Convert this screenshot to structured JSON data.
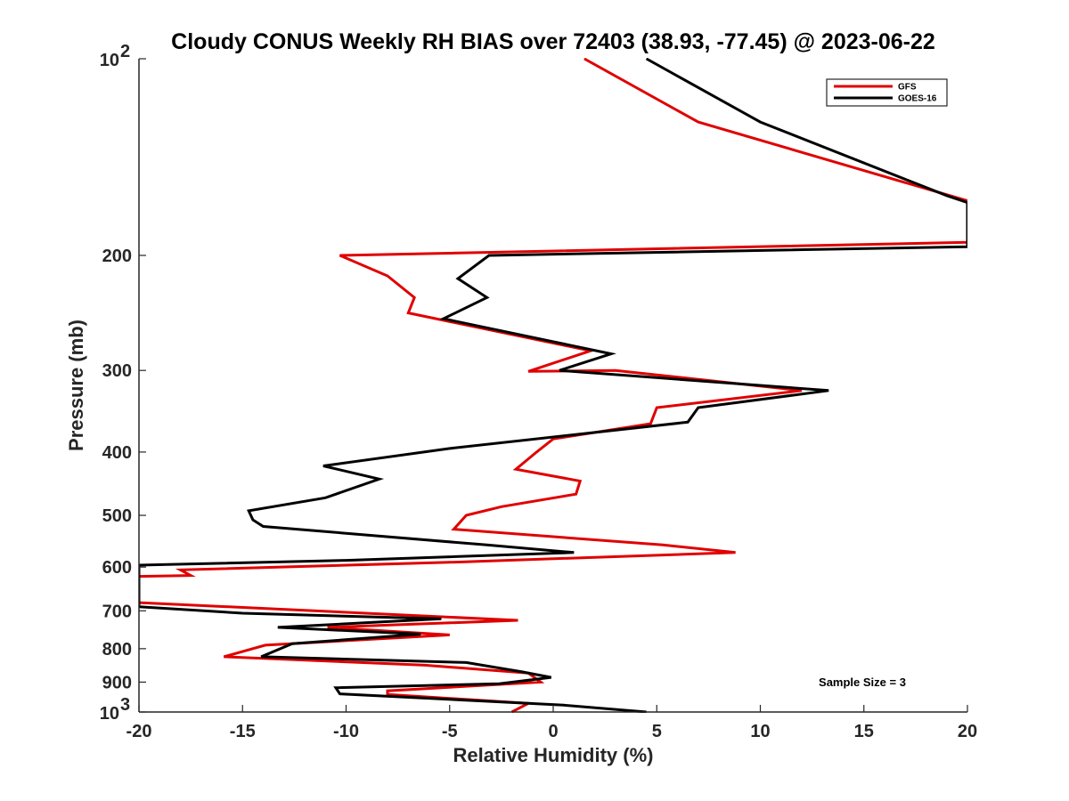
{
  "chart_data": {
    "type": "line",
    "title": "Cloudy CONUS Weekly RH BIAS over 72403 (38.93, -77.45) @ 2023-06-22",
    "xlabel": "Relative Humidity (%)",
    "ylabel": "Pressure (mb)",
    "xlim": [
      -20,
      20
    ],
    "ylim": [
      100,
      1000
    ],
    "y_scale": "log",
    "y_reversed": true,
    "grid": false,
    "legend_position": "top-right",
    "annotation": "Sample Size = 3",
    "x_ticks": [
      {
        "value": -20,
        "label": "-20"
      },
      {
        "value": -15,
        "label": "-15"
      },
      {
        "value": -10,
        "label": "-10"
      },
      {
        "value": -5,
        "label": "-5"
      },
      {
        "value": 0,
        "label": "0"
      },
      {
        "value": 5,
        "label": "5"
      },
      {
        "value": 10,
        "label": "10"
      },
      {
        "value": 15,
        "label": "15"
      },
      {
        "value": 20,
        "label": "20"
      }
    ],
    "y_ticks": [
      {
        "value": 200,
        "label": "200"
      },
      {
        "value": 300,
        "label": "300"
      },
      {
        "value": 400,
        "label": "400"
      },
      {
        "value": 500,
        "label": "500"
      },
      {
        "value": 600,
        "label": "600"
      },
      {
        "value": 700,
        "label": "700"
      },
      {
        "value": 800,
        "label": "800"
      },
      {
        "value": 900,
        "label": "900"
      }
    ],
    "y_power_ticks": [
      {
        "value": 100,
        "base": "10",
        "exponent": "2"
      },
      {
        "value": 1000,
        "base": "10",
        "exponent": "3"
      }
    ],
    "series": [
      {
        "name": "GFS",
        "color": "#e00000",
        "points": [
          [
            1.5,
            100
          ],
          [
            7,
            125
          ],
          [
            20,
            165
          ],
          [
            20,
            191
          ],
          [
            -10.3,
            200
          ],
          [
            -8,
            215
          ],
          [
            -6.7,
            232
          ],
          [
            -7,
            245
          ],
          [
            1.8,
            280
          ],
          [
            -1.2,
            301
          ],
          [
            3,
            300
          ],
          [
            12,
            322
          ],
          [
            5,
            342
          ],
          [
            4.7,
            362
          ],
          [
            0,
            382
          ],
          [
            -0.8,
            400
          ],
          [
            -1.8,
            425
          ],
          [
            1.3,
            443
          ],
          [
            1.1,
            464
          ],
          [
            -2.5,
            485
          ],
          [
            -4.2,
            500
          ],
          [
            -4.8,
            525
          ],
          [
            5.3,
            555
          ],
          [
            8.8,
            570
          ],
          [
            -5,
            590
          ],
          [
            -18,
            606
          ],
          [
            -17.5,
            618
          ],
          [
            -20,
            620
          ],
          [
            -20,
            680
          ],
          [
            -1.7,
            724
          ],
          [
            -10.9,
            742
          ],
          [
            -5,
            762
          ],
          [
            -13.9,
            790
          ],
          [
            -15.9,
            823
          ],
          [
            -6.2,
            848
          ],
          [
            -1.2,
            872
          ],
          [
            -0.6,
            900
          ],
          [
            -8,
            928
          ],
          [
            -8,
            940
          ],
          [
            -1.2,
            970
          ],
          [
            -2,
            1000
          ]
        ]
      },
      {
        "name": "GOES-16",
        "color": "#000000",
        "points": [
          [
            4.5,
            100
          ],
          [
            10,
            125
          ],
          [
            19,
            162
          ],
          [
            20,
            166
          ],
          [
            20,
            194
          ],
          [
            -3.1,
            200
          ],
          [
            -4.6,
            217
          ],
          [
            -3.2,
            232
          ],
          [
            -5.3,
            250
          ],
          [
            2.8,
            283
          ],
          [
            0.3,
            300
          ],
          [
            13.3,
            322
          ],
          [
            7,
            342
          ],
          [
            6.5,
            360
          ],
          [
            -5,
            395
          ],
          [
            -11.1,
            420
          ],
          [
            -8.4,
            440
          ],
          [
            -11,
            470
          ],
          [
            -14.7,
            492
          ],
          [
            -14.5,
            508
          ],
          [
            -14,
            520
          ],
          [
            -3.2,
            555
          ],
          [
            1,
            570
          ],
          [
            -10,
            586
          ],
          [
            -20,
            596
          ],
          [
            -20,
            690
          ],
          [
            -15,
            706
          ],
          [
            -5.4,
            720
          ],
          [
            -13.3,
            742
          ],
          [
            -6.4,
            760
          ],
          [
            -12.6,
            786
          ],
          [
            -14.1,
            823
          ],
          [
            -4.2,
            840
          ],
          [
            -1.5,
            868
          ],
          [
            -0.1,
            885
          ],
          [
            -2.6,
            905
          ],
          [
            -10.5,
            918
          ],
          [
            -10.3,
            938
          ],
          [
            0.5,
            976
          ],
          [
            4.5,
            1000
          ]
        ]
      }
    ]
  }
}
